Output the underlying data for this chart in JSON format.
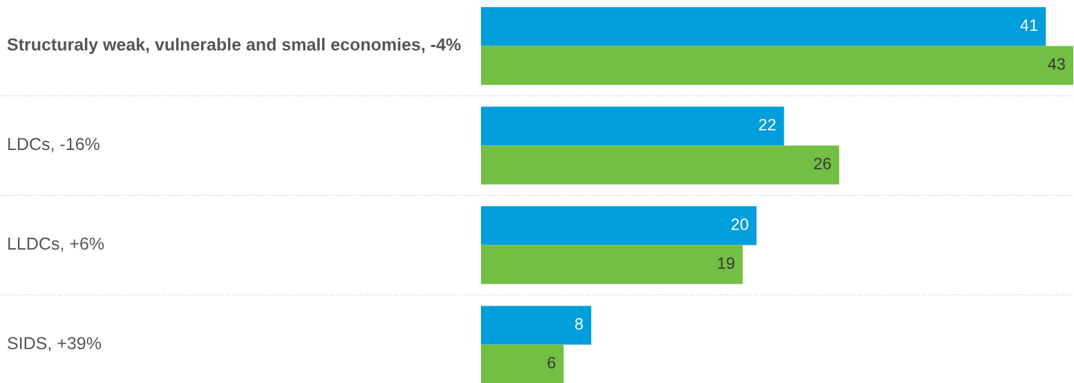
{
  "chart_data": {
    "type": "bar",
    "orientation": "horizontal",
    "categories": [
      "Structuraly weak, vulnerable and small economies, -4%",
      "LDCs, -16%",
      "LLDCs, +6%",
      "SIDS, +39%"
    ],
    "series": [
      {
        "color": "#009edb",
        "values": [
          41,
          22,
          20,
          8
        ]
      },
      {
        "color": "#72bf44",
        "values": [
          43,
          26,
          19,
          6
        ]
      }
    ],
    "data_labels": true
  }
}
